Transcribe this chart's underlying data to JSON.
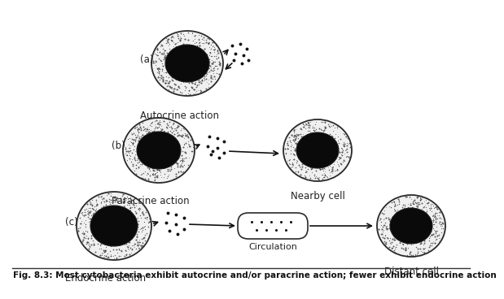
{
  "bg_color": "#ffffff",
  "fig_caption": "Fig. 8.3: Most cytobacteria exhibit autocrine and/or paracrine action; fewer exhibit endocrine action",
  "caption_fontsize": 7.5,
  "label_fontsize": 8.5,
  "label_a": "(a)",
  "label_b": "(b)",
  "label_c": "(c)",
  "text_autocrine": "Autocrine action",
  "text_paracrine": "Paracrine action",
  "text_nearby": "Nearby cell",
  "text_endocrine": "Endocrine action",
  "text_circulation": "Circulation",
  "text_distant": "Distant cell",
  "line_color": "#111111"
}
